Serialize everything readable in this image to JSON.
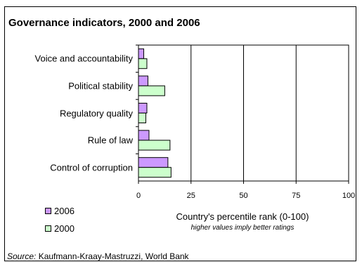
{
  "chart_data": {
    "type": "bar",
    "orientation": "horizontal",
    "title": "Governance indicators, 2000 and 2006",
    "categories": [
      "Voice and accountability",
      "Political stability",
      "Regulatory quality",
      "Rule of law",
      "Control of corruption"
    ],
    "series": [
      {
        "name": "2006",
        "color": "#cc99ff",
        "values": [
          2.5,
          4.5,
          4.0,
          5.0,
          14.0
        ]
      },
      {
        "name": "2000",
        "color": "#ccffcc",
        "values": [
          4.0,
          12.5,
          3.5,
          15.0,
          15.5
        ]
      }
    ],
    "xlim": [
      0,
      100
    ],
    "xticks": [
      "0",
      "25",
      "50",
      "75",
      "100"
    ],
    "xlabel": "Country's percentile rank (0-100)",
    "xlabel_note": "higher values imply better ratings",
    "grid": "vertical",
    "legend": "bottom-left"
  },
  "source": {
    "prefix": "Source:",
    "text": "Kaufmann-Kraay-Mastruzzi, World Bank"
  }
}
